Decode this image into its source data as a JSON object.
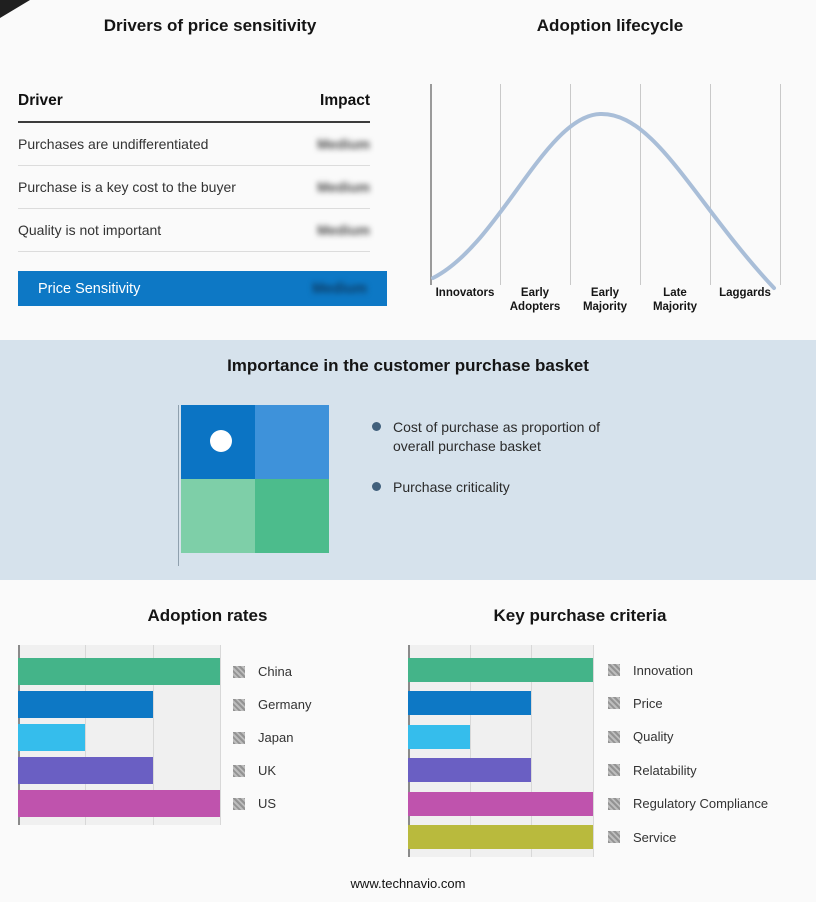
{
  "drivers_panel": {
    "title": "Drivers of price sensitivity",
    "columns": {
      "driver": "Driver",
      "impact": "Impact"
    },
    "rows": [
      {
        "driver": "Purchases are undifferentiated",
        "impact": "Medium"
      },
      {
        "driver": "Purchase is a key cost to the buyer",
        "impact": "Medium"
      },
      {
        "driver": "Quality is not important",
        "impact": "Medium"
      }
    ],
    "highlight_row": {
      "label": "Price Sensitivity",
      "impact": "Medium"
    },
    "highlight_color": "#0d78c5"
  },
  "lifecycle_panel": {
    "title": "Adoption lifecycle",
    "stages": [
      "Innovators",
      "Early Adopters",
      "Early Majority",
      "Late Majority",
      "Laggards"
    ],
    "curve_color": "#a9bed8"
  },
  "basket_panel": {
    "title": "Importance in the customer purchase basket",
    "bullets": [
      "Cost of purchase as proportion of overall purchase basket",
      "Purchase criticality"
    ],
    "quadrant_colors": [
      "#0b74c4",
      "#3e92da",
      "#7ecfa8",
      "#4cbc8c"
    ],
    "band_color": "#d6e2ec"
  },
  "chart_data": [
    {
      "type": "bar",
      "orientation": "horizontal",
      "title": "Adoption rates",
      "categories": [
        "China",
        "Germany",
        "Japan",
        "UK",
        "US"
      ],
      "values": [
        3,
        2,
        1,
        2,
        3
      ],
      "xlim": [
        0,
        3
      ],
      "gridlines": true,
      "legend_position": "right",
      "colors": [
        "#44b489",
        "#0d78c5",
        "#35bdec",
        "#6a5fc3",
        "#bf53ad"
      ]
    },
    {
      "type": "bar",
      "orientation": "horizontal",
      "title": "Key purchase criteria",
      "categories": [
        "Innovation",
        "Price",
        "Quality",
        "Relatability",
        "Regulatory Compliance",
        "Service"
      ],
      "values": [
        3,
        2,
        1,
        2,
        3,
        3
      ],
      "xlim": [
        0,
        3
      ],
      "gridlines": true,
      "legend_position": "right",
      "colors": [
        "#44b489",
        "#0d78c5",
        "#35bdec",
        "#6a5fc3",
        "#bf53ad",
        "#b9ba3d"
      ]
    }
  ],
  "footer": {
    "url": "www.technavio.com"
  }
}
